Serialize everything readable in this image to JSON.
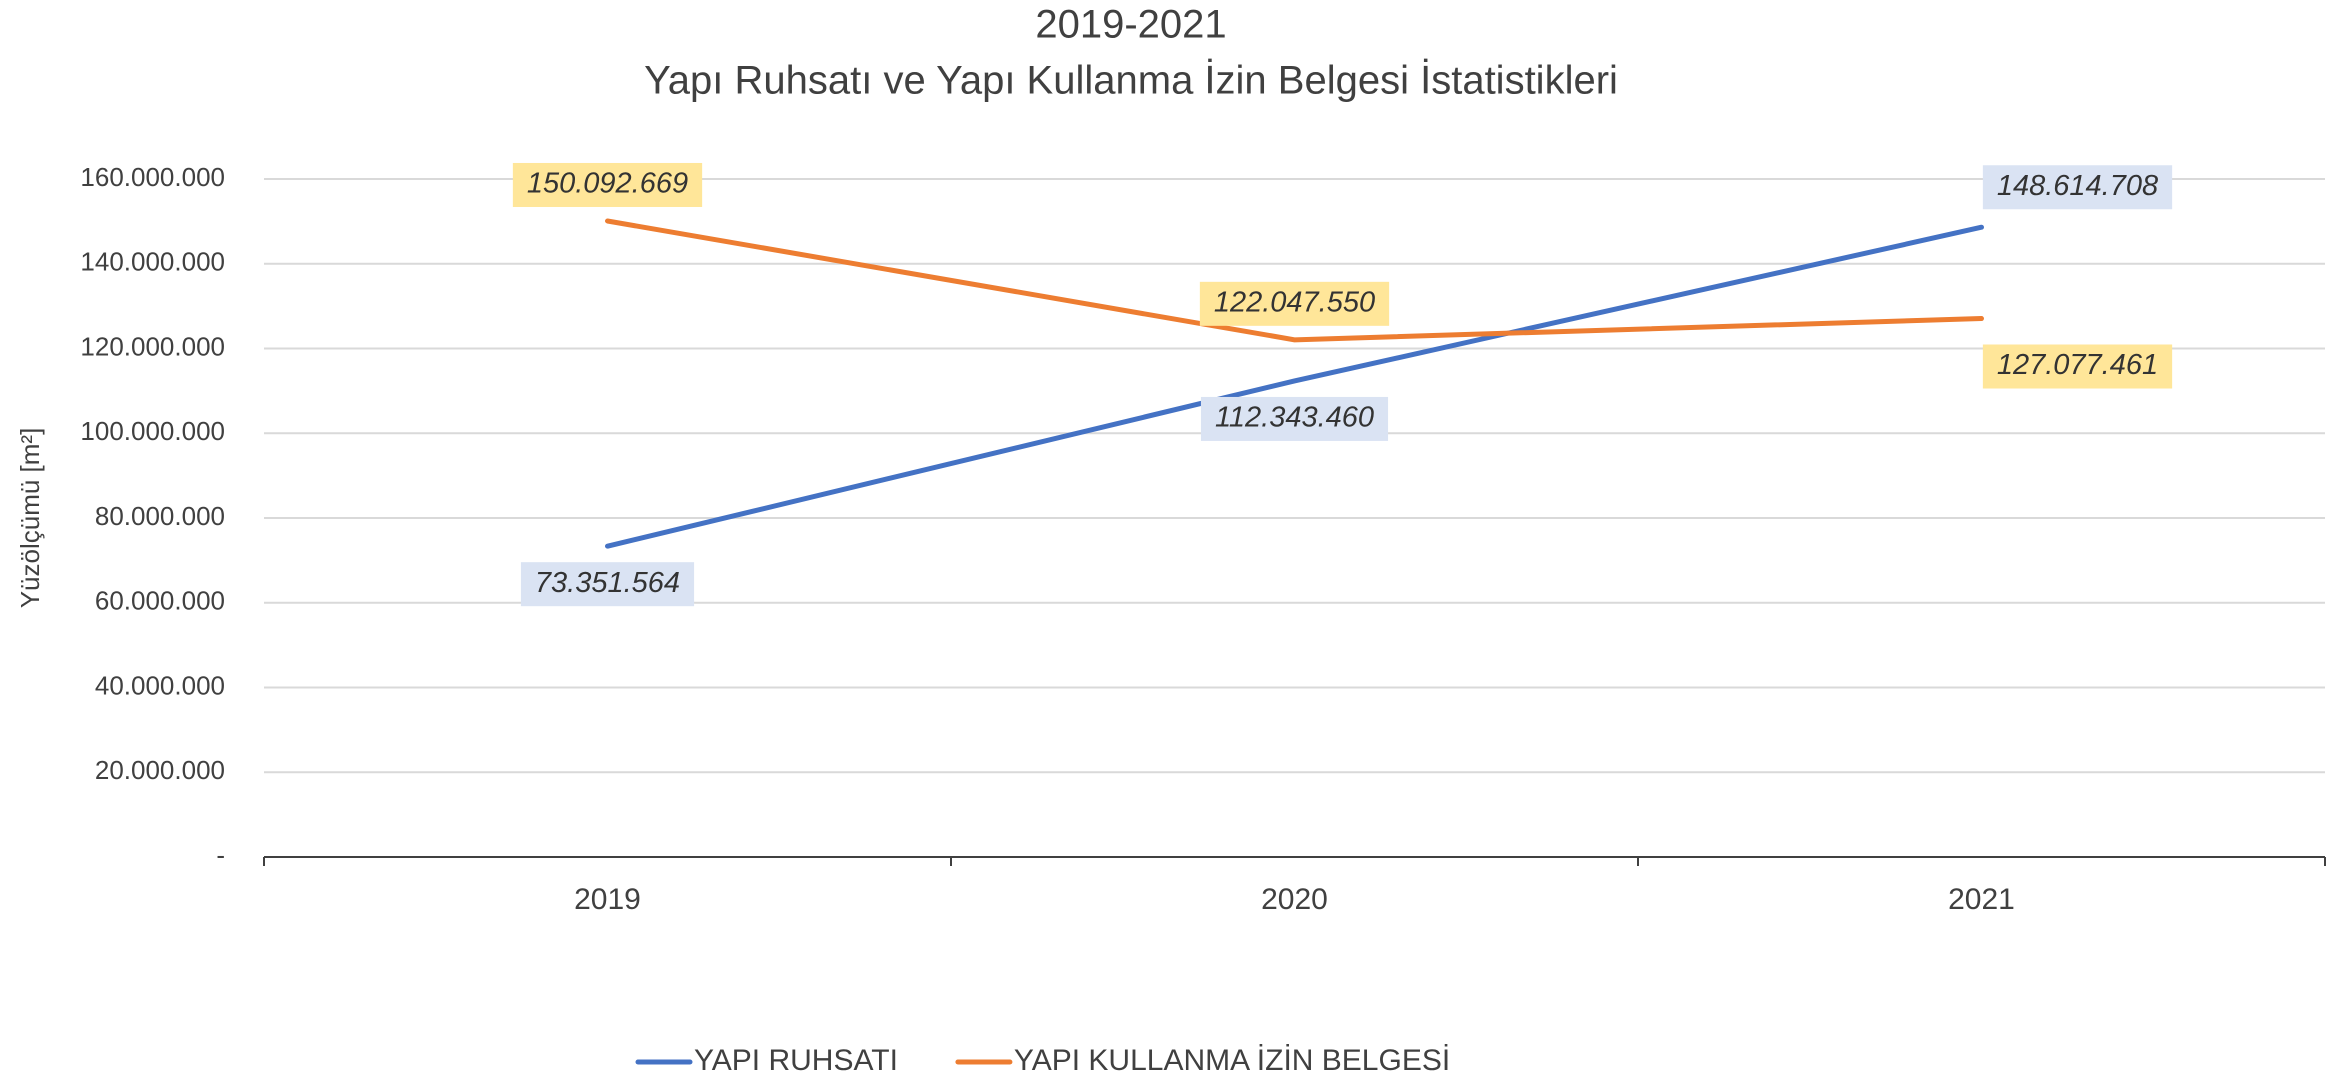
{
  "chart_data": {
    "type": "line",
    "title": "2019-2021",
    "subtitle": "Yapı Ruhsatı ve Yapı Kullanma İzin Belgesi İstatistikleri",
    "y_label": "Yüzölçümü [m²]",
    "categories": [
      "2019",
      "2020",
      "2021"
    ],
    "series": [
      {
        "name": "YAPI RUHSATI",
        "color": "#4472c4",
        "label_bg": "#dae3f3",
        "values": [
          73351564,
          112343460,
          148614708
        ],
        "value_labels": [
          "73.351.564",
          "112.343.460",
          "148.614.708"
        ]
      },
      {
        "name": "YAPI KULLANMA İZİN BELGESİ",
        "color": "#ed7d31",
        "label_bg": "#ffe699",
        "values": [
          150092669,
          122047550,
          127077461
        ],
        "value_labels": [
          "150.092.669",
          "122.047.550",
          "127.077.461"
        ]
      }
    ],
    "ylim": [
      0,
      160000000
    ],
    "yticks": [
      {
        "value": 0,
        "label": "-"
      },
      {
        "value": 20000000,
        "label": "20.000.000"
      },
      {
        "value": 40000000,
        "label": "40.000.000"
      },
      {
        "value": 60000000,
        "label": "60.000.000"
      },
      {
        "value": 80000000,
        "label": "80.000.000"
      },
      {
        "value": 100000000,
        "label": "100.000.000"
      },
      {
        "value": 120000000,
        "label": "120.000.000"
      },
      {
        "value": 140000000,
        "label": "140.000.000"
      },
      {
        "value": 160000000,
        "label": "160.000.000"
      }
    ],
    "grid": true,
    "legend": "bottom"
  }
}
